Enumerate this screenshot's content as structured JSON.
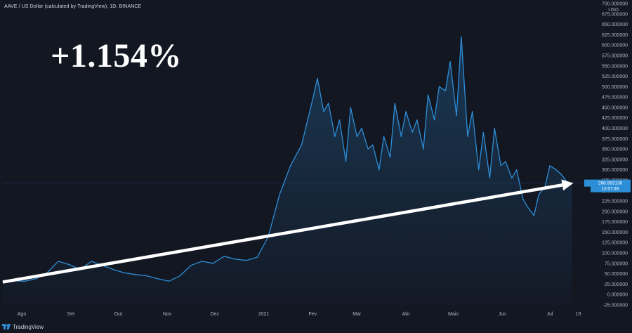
{
  "header": {
    "symbol_title": "AAVE / US Dollar (calculated by TradingView), 1D, BINANCE"
  },
  "annotation": {
    "big_label": "+1.154%"
  },
  "footer": {
    "brand_name": "TradingView"
  },
  "colors": {
    "background": "#131722",
    "line": "#2d8ed8",
    "arrow": "#ffffff",
    "axis_text": "#b2b5be",
    "price_tag": "#2d8ed8"
  },
  "chart_data": {
    "type": "area",
    "title": "AAVE / US Dollar (calculated by TradingView), 1D, BINANCE",
    "xlabel": "",
    "ylabel": "",
    "y_unit_label": "USD",
    "ylim": [
      -25,
      700
    ],
    "grid": false,
    "x_tick_labels": [
      "Ago",
      "Set",
      "Out",
      "Nov",
      "Dez",
      "2021",
      "Fev",
      "Mar",
      "Abr",
      "Maio",
      "Jun",
      "Jul",
      "19"
    ],
    "y_tick_labels": [
      "700.000000",
      "675.000000",
      "650.000000",
      "625.000000",
      "600.000000",
      "575.000000",
      "550.000000",
      "525.000000",
      "500.000000",
      "475.000000",
      "450.000000",
      "425.000000",
      "400.000000",
      "375.000000",
      "350.000000",
      "325.000000",
      "300.000000",
      "275.000000",
      "250.000000",
      "225.000000",
      "200.000000",
      "175.000000",
      "150.000000",
      "125.000000",
      "100.000000",
      "75.000000",
      "50.000000",
      "25.000000",
      "0.000000",
      "-25.000000"
    ],
    "series": [
      {
        "x": [
          "2020-07-20",
          "2020-07-27",
          "2020-08-03",
          "2020-08-10",
          "2020-08-17",
          "2020-08-24",
          "2020-08-31",
          "2020-09-07",
          "2020-09-14",
          "2020-09-21",
          "2020-09-28",
          "2020-10-05",
          "2020-10-12",
          "2020-10-19",
          "2020-10-26",
          "2020-11-02",
          "2020-11-09",
          "2020-11-16",
          "2020-11-23",
          "2020-11-30",
          "2020-12-07",
          "2020-12-14",
          "2020-12-21",
          "2020-12-28",
          "2021-01-04",
          "2021-01-11",
          "2021-01-18",
          "2021-01-25",
          "2021-02-01",
          "2021-02-04",
          "2021-02-08",
          "2021-02-11",
          "2021-02-15",
          "2021-02-18",
          "2021-02-22",
          "2021-02-25",
          "2021-03-01",
          "2021-03-04",
          "2021-03-08",
          "2021-03-11",
          "2021-03-15",
          "2021-03-18",
          "2021-03-22",
          "2021-03-25",
          "2021-03-29",
          "2021-04-01",
          "2021-04-05",
          "2021-04-08",
          "2021-04-12",
          "2021-04-15",
          "2021-04-19",
          "2021-04-22",
          "2021-04-26",
          "2021-04-29",
          "2021-05-03",
          "2021-05-06",
          "2021-05-10",
          "2021-05-13",
          "2021-05-17",
          "2021-05-20",
          "2021-05-24",
          "2021-05-27",
          "2021-05-31",
          "2021-06-03",
          "2021-06-07",
          "2021-06-10",
          "2021-06-14",
          "2021-06-17",
          "2021-06-21",
          "2021-06-24",
          "2021-06-28",
          "2021-07-01",
          "2021-07-05",
          "2021-07-08",
          "2021-07-12",
          "2021-07-15"
        ],
        "values": [
          30,
          33,
          32,
          38,
          52,
          80,
          72,
          60,
          80,
          70,
          60,
          52,
          48,
          45,
          38,
          32,
          45,
          70,
          80,
          75,
          92,
          85,
          82,
          90,
          140,
          240,
          310,
          360,
          470,
          520,
          440,
          460,
          380,
          420,
          320,
          450,
          380,
          400,
          350,
          360,
          300,
          380,
          330,
          460,
          380,
          440,
          390,
          420,
          350,
          480,
          420,
          500,
          490,
          560,
          430,
          620,
          380,
          440,
          300,
          390,
          280,
          400,
          310,
          320,
          280,
          300,
          230,
          210,
          190,
          240,
          260,
          310,
          300,
          290,
          270,
          268
        ]
      }
    ],
    "annotations": {
      "current_price_tag": "268.983138",
      "countdown_tag": "10:57:46",
      "big_label": "+1.154%"
    }
  }
}
